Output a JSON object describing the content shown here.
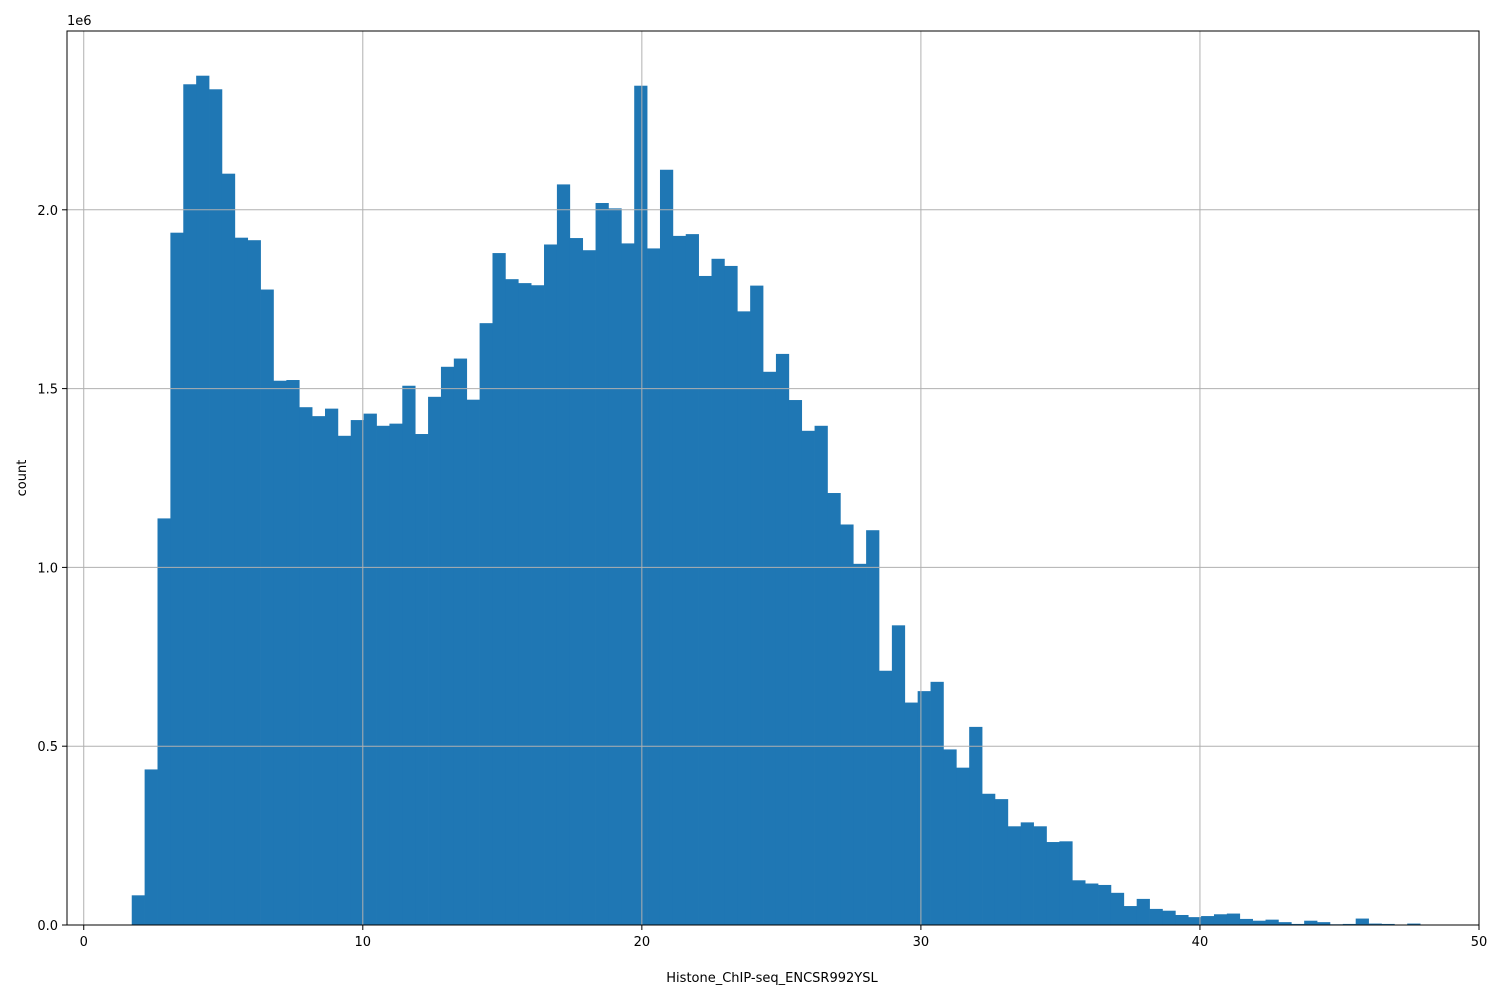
{
  "chart_data": {
    "type": "bar",
    "title": "",
    "xlabel": "Histone_ChIP-seq_ENCSR992YSL",
    "ylabel": "count",
    "y_scale_label": "1e6",
    "xlim": [
      -0.6,
      50.0
    ],
    "ylim": [
      0,
      2.5
    ],
    "grid": true,
    "bar_color": "#1f77b4",
    "x_ticks": [
      0,
      10,
      20,
      30,
      40,
      50
    ],
    "x_tick_labels": [
      "0",
      "10",
      "20",
      "30",
      "40",
      "50"
    ],
    "y_ticks": [
      0.0,
      0.5,
      1.0,
      1.5,
      2.0
    ],
    "y_tick_labels": [
      "0.0",
      "0.5",
      "1.0",
      "1.5",
      "2.0"
    ],
    "bins": {
      "start": 1.72,
      "width": 0.4617
    },
    "values": [
      0.083,
      0.435,
      1.137,
      1.936,
      2.351,
      2.375,
      2.337,
      2.101,
      1.922,
      1.915,
      1.777,
      1.522,
      1.524,
      1.448,
      1.423,
      1.444,
      1.368,
      1.412,
      1.43,
      1.396,
      1.402,
      1.508,
      1.373,
      1.477,
      1.561,
      1.584,
      1.469,
      1.683,
      1.879,
      1.806,
      1.795,
      1.789,
      1.903,
      2.071,
      1.921,
      1.887,
      2.019,
      2.004,
      1.906,
      2.347,
      1.892,
      2.112,
      1.927,
      1.932,
      1.815,
      1.863,
      1.843,
      1.716,
      1.788,
      1.547,
      1.597,
      1.468,
      1.382,
      1.396,
      1.208,
      1.12,
      1.01,
      1.104,
      0.711,
      0.838,
      0.622,
      0.654,
      0.68,
      0.491,
      0.44,
      0.554,
      0.367,
      0.352,
      0.276,
      0.287,
      0.276,
      0.232,
      0.234,
      0.125,
      0.116,
      0.112,
      0.09,
      0.053,
      0.073,
      0.045,
      0.04,
      0.028,
      0.022,
      0.025,
      0.03,
      0.032,
      0.017,
      0.012,
      0.015,
      0.008,
      0.003,
      0.012,
      0.008,
      0.002,
      0.003,
      0.018,
      0.004,
      0.003,
      0.001,
      0.004
    ]
  }
}
